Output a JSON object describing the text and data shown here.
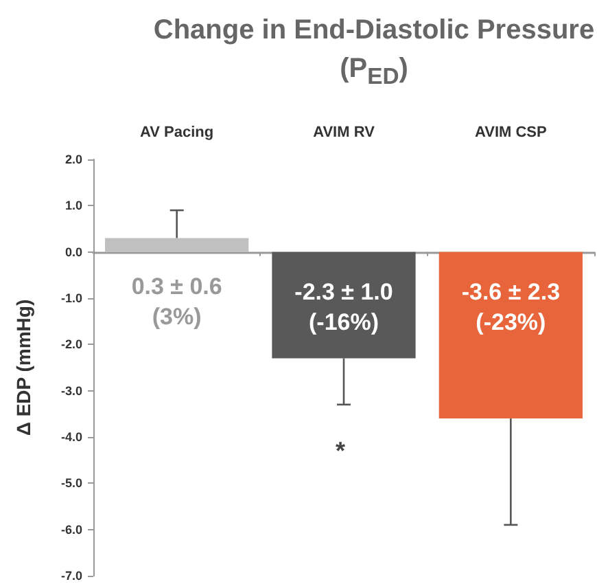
{
  "chart_data": {
    "type": "bar",
    "title": "Change in End-Diastolic Pressure (P$_{ED}$)",
    "ylabel": "Δ EDP (mmHg)",
    "categories": [
      "AV Pacing",
      "AVIM RV",
      "AVIM CSP"
    ],
    "values": [
      0.3,
      -2.3,
      -3.6
    ],
    "colors": [
      "#c0c0c0",
      "#595959",
      "#e8643a"
    ],
    "errors": [
      [
        0.3,
        0.9
      ],
      [
        -3.3,
        -2.3
      ],
      [
        -5.9,
        -3.6
      ]
    ],
    "value_labels": [
      "0.3 ± 0.6\n(3%)",
      "-2.3 ± 1.0\n(-16%)",
      "-3.6 ± 2.3\n(-23%)"
    ],
    "annotations": [
      "*"
    ],
    "ylim": [
      -7,
      2
    ],
    "yticks": [
      {
        "value": 2,
        "label": "2.0"
      },
      {
        "value": 1,
        "label": "1.0"
      },
      {
        "value": 0,
        "label": "0.0"
      },
      {
        "value": -1,
        "label": "-1.0"
      },
      {
        "value": -2,
        "label": "-2.0"
      },
      {
        "value": -3,
        "label": "-3.0"
      },
      {
        "value": -4,
        "label": "-4.0"
      },
      {
        "value": -5,
        "label": "-5.0"
      },
      {
        "value": -6,
        "label": "-6.0"
      },
      {
        "value": -7,
        "label": "-7.0"
      }
    ]
  }
}
